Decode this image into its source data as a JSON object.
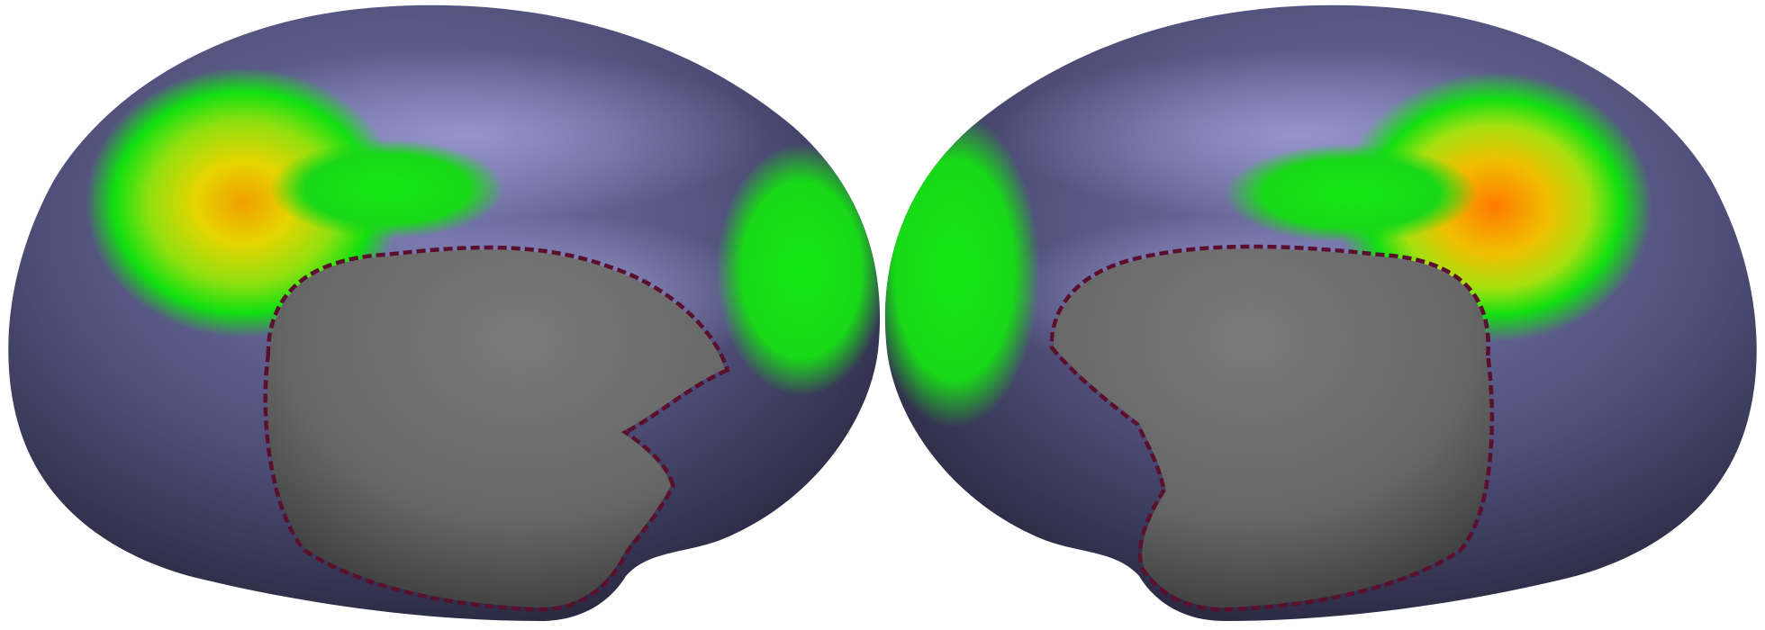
{
  "image": {
    "background": "#ffffff",
    "subject": "inflated-cortical-surface-medial-views",
    "hemispheres": [
      {
        "side": "left",
        "view": "medial"
      },
      {
        "side": "right",
        "view": "medial"
      }
    ]
  },
  "colors": {
    "surface_dark": "#2a2a44",
    "surface_mid": "#50507a",
    "surface_light": "#8686b8",
    "medial_wall": "#6e6e6e",
    "medial_wall_shadow": "#3c3c3c",
    "boundary": "#5a0f2c",
    "activation_low": "#10e010",
    "activation_mid": "#d8e010",
    "activation_high": "#ff7a00"
  },
  "colormap": [
    "#10e010",
    "#d8e010",
    "#ff7a00"
  ]
}
